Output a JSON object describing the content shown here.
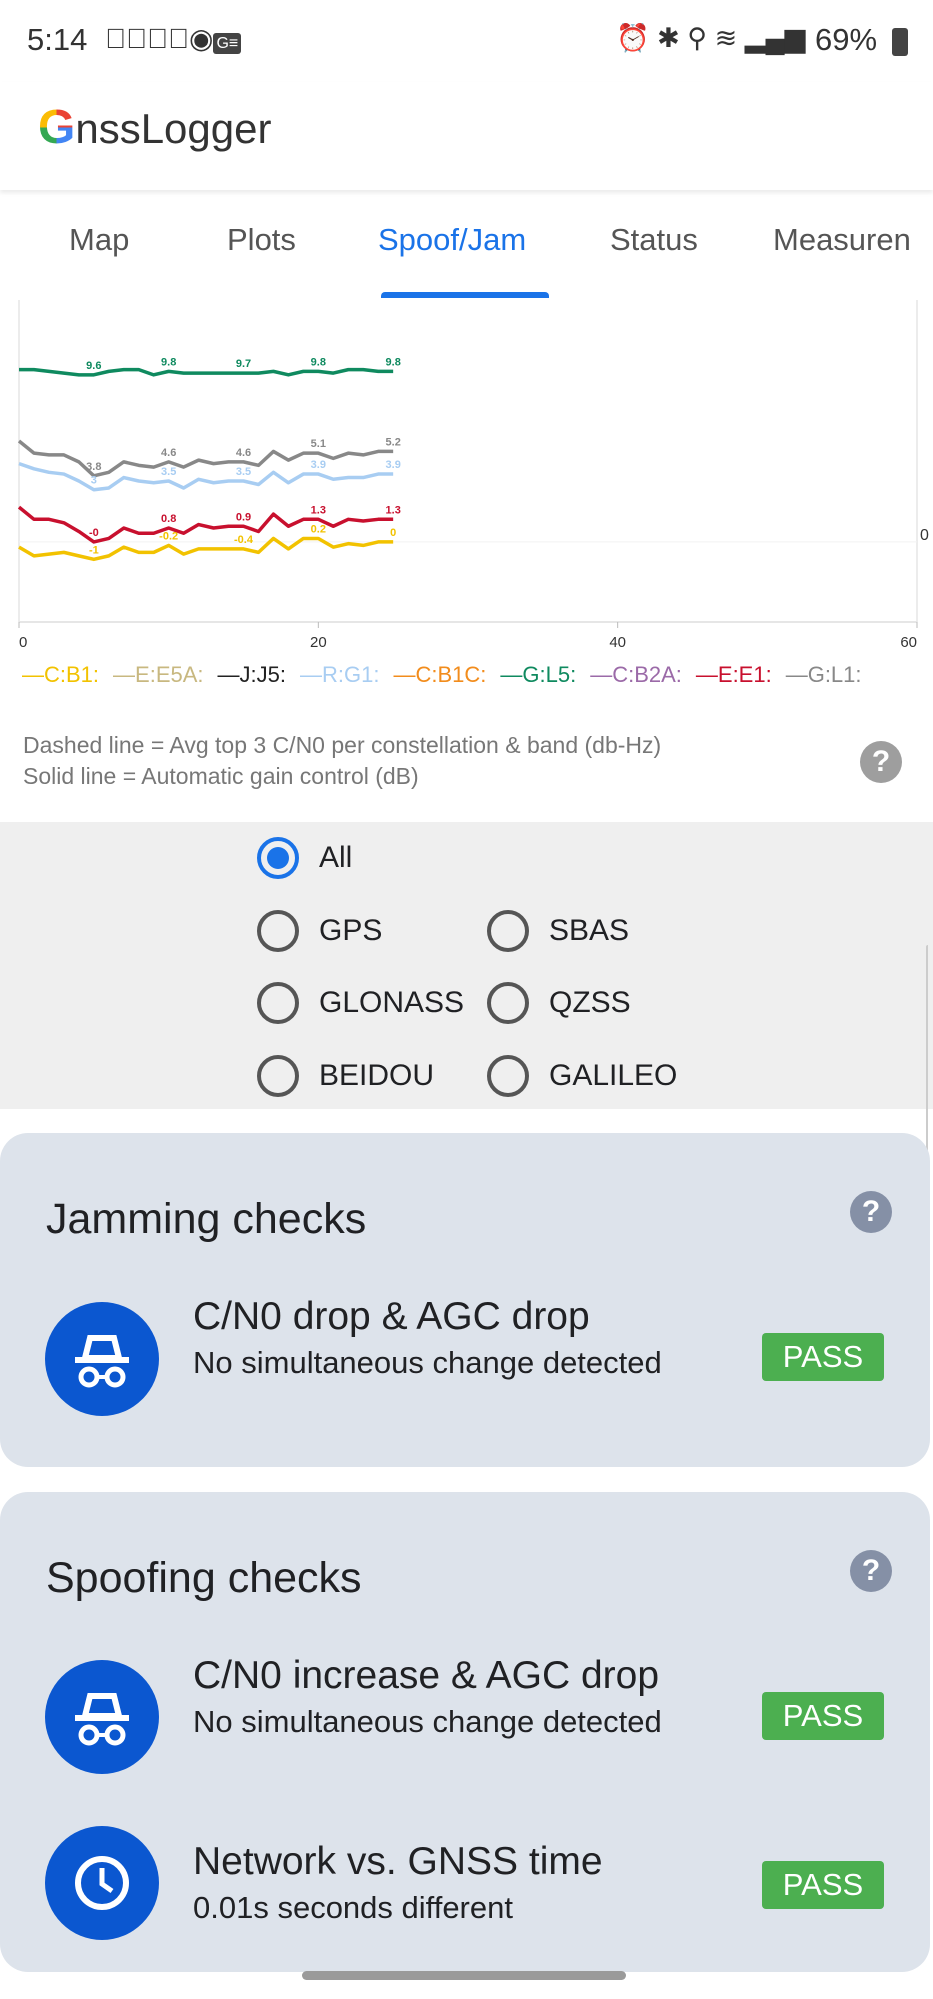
{
  "status_bar": {
    "time": "5:14",
    "battery": "69%",
    "left_icons": [
      "check-circle-icon",
      "check-circle-icon",
      "community-icon",
      "gmail-icon"
    ],
    "right_icons": [
      "alarm-icon",
      "bluetooth-icon",
      "location-icon",
      "wifi-icon",
      "signal-icon",
      "battery-charging-icon"
    ]
  },
  "app": {
    "title": "GnssLogger",
    "title_letter": "G",
    "title_rest": "nssLogger"
  },
  "tabs": [
    {
      "label": "Map"
    },
    {
      "label": "Plots"
    },
    {
      "label": "Spoof/Jam",
      "active": true
    },
    {
      "label": "Status"
    },
    {
      "label": "Measuren"
    }
  ],
  "chart_data": {
    "type": "line",
    "xlim": [
      0,
      60
    ],
    "ylim": [
      -4.6,
      13.9
    ],
    "x_ticks": [
      "0",
      "20",
      "40",
      "60"
    ],
    "right_label": "0",
    "grid": false,
    "x": [
      0,
      1,
      2,
      3,
      4,
      5,
      6,
      7,
      8,
      9,
      10,
      11,
      12,
      13,
      14,
      15,
      16,
      17,
      18,
      19,
      20,
      21,
      22,
      23,
      24,
      25
    ],
    "label_x": [
      5,
      10,
      15,
      20,
      25
    ],
    "series": [
      {
        "name": "G:L5",
        "color": "#0f8a5f",
        "values": [
          9.9,
          9.9,
          9.8,
          9.7,
          9.6,
          9.6,
          9.8,
          9.9,
          9.9,
          9.6,
          9.8,
          9.7,
          9.7,
          9.7,
          9.7,
          9.7,
          9.7,
          9.8,
          9.6,
          9.8,
          9.8,
          9.7,
          9.9,
          9.9,
          9.8,
          9.8
        ],
        "labels": [
          "9.6",
          "9.8",
          "9.7",
          "9.8",
          "9.8"
        ]
      },
      {
        "name": "G:L1",
        "color": "#888888",
        "values": [
          5.8,
          5.1,
          5.0,
          5.0,
          4.6,
          3.8,
          4.0,
          4.6,
          4.4,
          4.3,
          4.6,
          4.3,
          4.7,
          4.5,
          4.6,
          4.6,
          4.4,
          5.2,
          4.7,
          5.1,
          5.1,
          4.8,
          5.1,
          5.0,
          5.2,
          5.2
        ],
        "labels": [
          "3.8",
          "4.6",
          "4.6",
          "5.1",
          "5.2"
        ]
      },
      {
        "name": "R:G1",
        "color": "#a8cdf2",
        "values": [
          4.5,
          4.2,
          4.0,
          3.9,
          3.5,
          3.0,
          3.1,
          3.7,
          3.5,
          3.4,
          3.5,
          3.1,
          3.6,
          3.4,
          3.5,
          3.5,
          3.3,
          4.0,
          3.4,
          3.9,
          3.9,
          3.6,
          3.7,
          3.7,
          3.9,
          3.9
        ],
        "labels": [
          "3",
          "3.5",
          "3.5",
          "3.9",
          "3.9"
        ]
      },
      {
        "name": "E:E1",
        "color": "#c8102e",
        "values": [
          2.0,
          1.3,
          1.3,
          1.1,
          0.6,
          0,
          0.2,
          0.8,
          0.5,
          0.5,
          0.8,
          0.5,
          1.0,
          0.8,
          0.9,
          0.9,
          0.6,
          1.6,
          0.9,
          1.3,
          1.3,
          0.9,
          1.3,
          1.2,
          1.3,
          1.3
        ],
        "labels": [
          "-0",
          "0.8",
          "0.9",
          "1.3",
          "1.3"
        ]
      },
      {
        "name": "C:B1",
        "color": "#f2c200",
        "values": [
          -0.3,
          -0.8,
          -0.7,
          -0.6,
          -0.8,
          -1.0,
          -0.8,
          -0.3,
          -0.6,
          -0.6,
          -0.2,
          -0.7,
          -0.4,
          -0.4,
          -0.4,
          -0.4,
          -0.6,
          0.2,
          -0.4,
          0.2,
          0.2,
          -0.3,
          -0.1,
          -0.2,
          0,
          0
        ],
        "labels": [
          "-1",
          "-0.2",
          "-0.4",
          "0.2",
          "0"
        ]
      }
    ]
  },
  "legend": [
    {
      "label": "—C:B1:",
      "color": "#f2c200"
    },
    {
      "label": "—E:E5A:",
      "color": "#c8b880"
    },
    {
      "label": "—J:J5:",
      "color": "#222222"
    },
    {
      "label": "—R:G1:",
      "color": "#a8cdf2"
    },
    {
      "label": "—C:B1C:",
      "color": "#f28c1c"
    },
    {
      "label": "—G:L5:",
      "color": "#0f8a5f"
    },
    {
      "label": "—C:B2A:",
      "color": "#9b6aa8"
    },
    {
      "label": "—E:E1:",
      "color": "#c8102e"
    },
    {
      "label": "—G:L1:",
      "color": "#888888"
    }
  ],
  "notes": {
    "dashed": "Dashed line = Avg top 3 C/N0 per constellation & band (db-Hz)",
    "solid": "Solid line = Automatic gain control (dB)",
    "help": "?"
  },
  "filters": [
    {
      "label": "All",
      "selected": true
    },
    {
      "label": "GPS"
    },
    {
      "label": "SBAS"
    },
    {
      "label": "GLONASS"
    },
    {
      "label": "QZSS"
    },
    {
      "label": "BEIDOU"
    },
    {
      "label": "GALILEO"
    }
  ],
  "jamming": {
    "title": "Jamming checks",
    "help": "?",
    "checks": [
      {
        "icon": "incognito-icon",
        "title": "C/N0 drop & AGC drop",
        "subtitle": "No simultaneous change detected",
        "status": "PASS"
      }
    ]
  },
  "spoofing": {
    "title": "Spoofing checks",
    "help": "?",
    "checks": [
      {
        "icon": "incognito-icon",
        "title": "C/N0 increase & AGC drop",
        "subtitle": "No simultaneous change detected",
        "status": "PASS"
      },
      {
        "icon": "clock-icon",
        "title": "Network vs. GNSS time",
        "subtitle": "0.01s seconds different",
        "status": "PASS"
      }
    ]
  },
  "colors": {
    "accent": "#1a73e8",
    "pass": "#4caf50",
    "card": "#dde3eb",
    "icon_bg": "#0b57d0"
  }
}
